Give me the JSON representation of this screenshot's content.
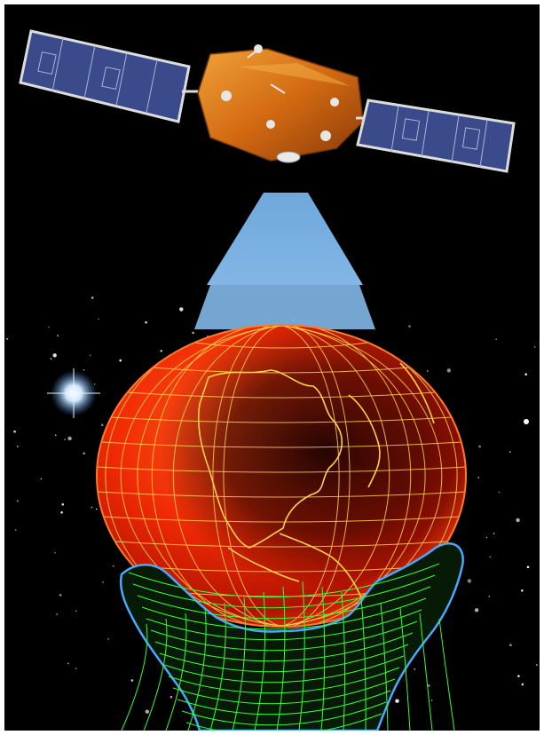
{
  "image": {
    "subject": "satellite-beaming-to-earth",
    "colors": {
      "background": "#000000",
      "panel_fill": "#3a4a8a",
      "panel_frame": "#dcdcdc",
      "satellite_body": "#d9731a",
      "beam": "#6fa8dc",
      "globe_fill": "#ff3a0a",
      "globe_dark": "#2a0500",
      "grid_lines": "#ffd24a",
      "hand_mesh": "#33ff33",
      "hand_outline": "#4aa8ff",
      "star": "#ffffff"
    }
  }
}
